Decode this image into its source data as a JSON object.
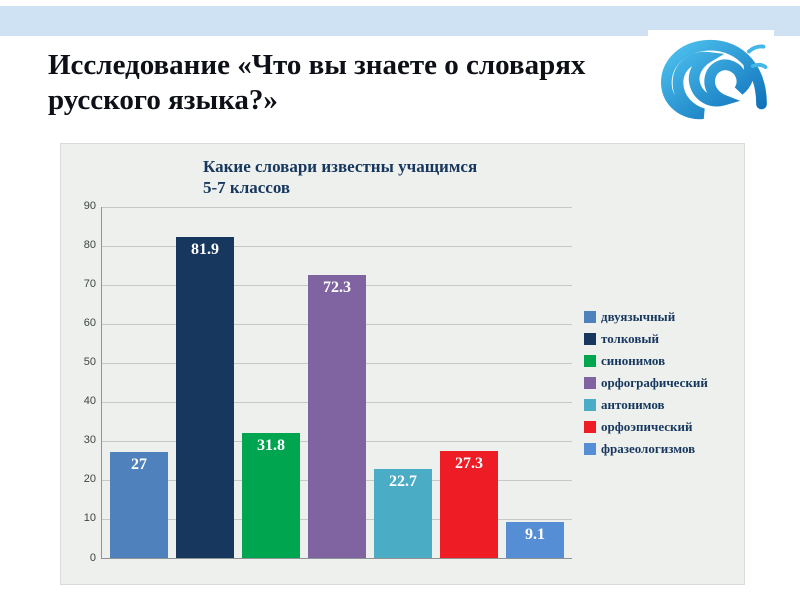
{
  "slide": {
    "title_line1": "Исследование «Что вы знаете о словарях",
    "title_line2": "русского языка?»"
  },
  "chart": {
    "title_line1": "Какие словари известны учащимся",
    "title_line2": "5-7 классов"
  },
  "chart_data": {
    "type": "bar",
    "title": "Какие словари известны учащимся 5-7 классов",
    "categories": [
      "двуязычный",
      "толковый",
      "синонимов",
      "орфографический",
      "антонимов",
      "орфоэпический",
      "фразеологизмов"
    ],
    "values": [
      27,
      81.9,
      31.8,
      72.3,
      22.7,
      27.3,
      9.1
    ],
    "colors": [
      "#4f81bd",
      "#17375e",
      "#00a550",
      "#8064a2",
      "#4bacc6",
      "#ee1c25",
      "#558ed5"
    ],
    "ylim": [
      0,
      90
    ],
    "yticks": [
      0,
      10,
      20,
      30,
      40,
      50,
      60,
      70,
      80,
      90
    ],
    "grid": true,
    "legend_position": "right"
  },
  "decor": {
    "accent_band_color": "#cfe2f3",
    "wave_color_light": "#4fc3f0",
    "wave_color_dark": "#0d6fb8"
  }
}
